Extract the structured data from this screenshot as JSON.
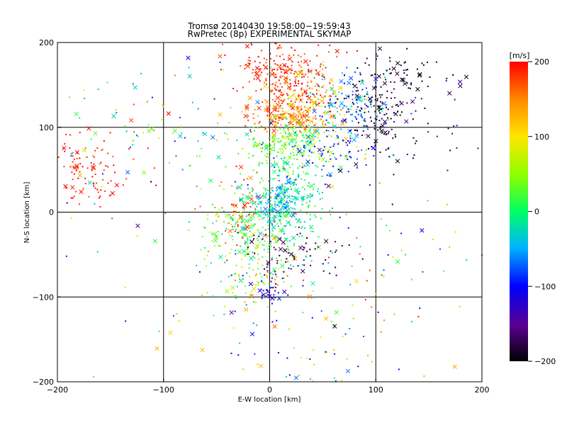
{
  "chart_data": {
    "type": "scatter",
    "title": "Tromsø 20140430 19:58:00−19:59:43",
    "subtitle": "RwPretec (8p) EXPERIMENTAL SKYMAP",
    "xlabel": "E-W location [km]",
    "ylabel": "N-S location [km]",
    "xlim": [
      -200,
      200
    ],
    "ylim": [
      -200,
      200
    ],
    "x_ticks": [
      "−200",
      "−100",
      "0",
      "100",
      "200"
    ],
    "y_ticks": [
      "−200",
      "−100",
      "0",
      "100",
      "200"
    ],
    "grid": true,
    "grid_lines": [
      -100,
      0,
      100
    ],
    "colorbar": {
      "label": "[m/s]",
      "range": [
        -200,
        200
      ],
      "ticks": [
        "200",
        "100",
        "0",
        "−100",
        "−200"
      ],
      "colormap": "rainbow: black-purple-blue-cyan-green-yellow-orange-red"
    },
    "marker_legend": {
      "small": "dot",
      "large": "x"
    },
    "clusters": [
      {
        "x": 15,
        "y": 160,
        "sx": 22,
        "sy": 22,
        "n": 260,
        "v": 185,
        "dv": 30
      },
      {
        "x": 15,
        "y": 115,
        "sx": 18,
        "sy": 12,
        "n": 170,
        "v": 160,
        "dv": 40
      },
      {
        "x": 40,
        "y": 130,
        "sx": 20,
        "sy": 18,
        "n": 110,
        "v": 120,
        "dv": 50
      },
      {
        "x": 75,
        "y": 130,
        "sx": 20,
        "sy": 22,
        "n": 120,
        "v": -60,
        "dv": 50
      },
      {
        "x": 105,
        "y": 120,
        "sx": 18,
        "sy": 28,
        "n": 140,
        "v": -185,
        "dv": 20
      },
      {
        "x": 120,
        "y": 160,
        "sx": 25,
        "sy": 18,
        "n": 50,
        "v": -190,
        "dv": 15
      },
      {
        "x": 20,
        "y": 80,
        "sx": 22,
        "sy": 16,
        "n": 220,
        "v": 30,
        "dv": 50
      },
      {
        "x": 60,
        "y": 75,
        "sx": 22,
        "sy": 18,
        "n": 90,
        "v": -100,
        "dv": 40
      },
      {
        "x": 10,
        "y": 5,
        "sx": 22,
        "sy": 30,
        "n": 320,
        "v": -5,
        "dv": 40
      },
      {
        "x": 12,
        "y": 20,
        "sx": 8,
        "sy": 15,
        "n": 90,
        "v": -50,
        "dv": 30
      },
      {
        "x": -25,
        "y": 5,
        "sx": 15,
        "sy": 20,
        "n": 70,
        "v": 170,
        "dv": 30
      },
      {
        "x": -30,
        "y": -35,
        "sx": 20,
        "sy": 30,
        "n": 120,
        "v": 20,
        "dv": 60
      },
      {
        "x": -10,
        "y": -70,
        "sx": 15,
        "sy": 20,
        "n": 60,
        "v": 80,
        "dv": 80
      },
      {
        "x": 0,
        "y": -90,
        "sx": 10,
        "sy": 8,
        "n": 35,
        "v": -110,
        "dv": 30
      },
      {
        "x": 20,
        "y": -50,
        "sx": 25,
        "sy": 15,
        "n": 70,
        "v": -175,
        "dv": 25
      },
      {
        "x": -175,
        "y": 45,
        "sx": 18,
        "sy": 22,
        "n": 90,
        "v": 190,
        "dv": 20
      },
      {
        "x": -120,
        "y": 90,
        "sx": 50,
        "sy": 40,
        "n": 80,
        "v": 60,
        "dv": 150
      },
      {
        "x": 30,
        "y": -160,
        "sx": 60,
        "sy": 40,
        "n": 80,
        "v": 0,
        "dv": 150
      },
      {
        "x": 0,
        "y": 0,
        "sx": 110,
        "sy": 110,
        "n": 160,
        "v": 0,
        "dv": 200
      },
      {
        "x": 170,
        "y": 120,
        "sx": 15,
        "sy": 40,
        "n": 20,
        "v": -160,
        "dv": 40
      },
      {
        "x": 120,
        "y": -60,
        "sx": 40,
        "sy": 40,
        "n": 25,
        "v": 50,
        "dv": 150
      }
    ]
  }
}
